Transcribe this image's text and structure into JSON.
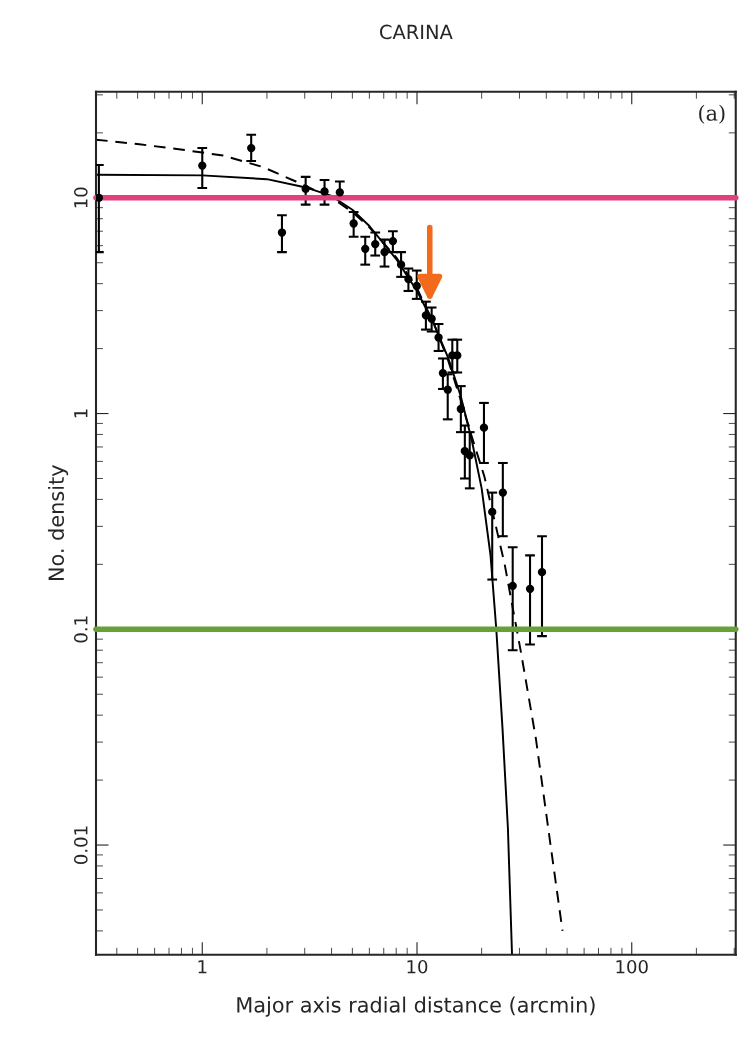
{
  "chart_data": {
    "type": "scatter",
    "title": "CARINA",
    "xlabel": "Major axis radial distance (arcmin)",
    "ylabel": "No. density",
    "log": "xy",
    "xlim": [
      0.32,
      305
    ],
    "ylim": [
      0.0031,
      31
    ],
    "xticks": [
      1,
      10,
      100
    ],
    "yticks": [
      0.01,
      0.1,
      1,
      10
    ],
    "grid": false,
    "legend": false,
    "annotations": [
      "(a)"
    ],
    "ref_lines": [
      {
        "axis": "y",
        "value": 10,
        "color": "#e23f7c"
      },
      {
        "axis": "y",
        "value": 0.1,
        "color": "#66a03a"
      }
    ],
    "series": [
      {
        "color": "#000000",
        "marker": "circle",
        "x": [
          0.33,
          1.0,
          1.69,
          2.35,
          3.03,
          3.71,
          4.37,
          5.07,
          5.74,
          6.39,
          7.06,
          7.72,
          8.43,
          9.12,
          9.97,
          11.0,
          11.7,
          12.6,
          13.2,
          13.9,
          14.6,
          15.4,
          16.0,
          16.7,
          17.6,
          20.5,
          22.4,
          25.1,
          27.9,
          33.6,
          38.2
        ],
        "values": [
          10,
          14.1,
          17.0,
          6.9,
          11.0,
          10.7,
          10.6,
          7.6,
          5.8,
          6.1,
          5.6,
          6.3,
          4.9,
          4.2,
          3.9,
          2.85,
          2.75,
          2.25,
          1.54,
          1.29,
          1.86,
          1.86,
          1.05,
          0.67,
          0.64,
          0.86,
          0.35,
          0.43,
          0.159,
          0.154,
          0.184
        ],
        "errors": [
          [
            5.6,
            14.2
          ],
          [
            11.1,
            17.0
          ],
          [
            14.8,
            19.6
          ],
          [
            5.6,
            8.3
          ],
          [
            9.3,
            12.5
          ],
          [
            9.3,
            12.1
          ],
          [
            10.0,
            11.9
          ],
          [
            6.6,
            8.6
          ],
          [
            4.9,
            6.6
          ],
          [
            5.4,
            6.9
          ],
          [
            4.8,
            6.4
          ],
          [
            5.6,
            7.0
          ],
          [
            4.3,
            5.6
          ],
          [
            3.7,
            4.7
          ],
          [
            3.4,
            4.6
          ],
          [
            2.45,
            3.3
          ],
          [
            2.4,
            3.1
          ],
          [
            1.95,
            2.6
          ],
          [
            1.3,
            1.8
          ],
          [
            0.94,
            1.52
          ],
          [
            1.55,
            2.2
          ],
          [
            1.55,
            2.2
          ],
          [
            0.82,
            1.34
          ],
          [
            0.5,
            0.88
          ],
          [
            0.45,
            0.82
          ],
          [
            0.59,
            1.12
          ],
          [
            0.17,
            0.43
          ],
          [
            0.27,
            0.59
          ],
          [
            0.08,
            0.24
          ],
          [
            0.085,
            0.22
          ],
          [
            0.093,
            0.27
          ]
        ]
      },
      {
        "type": "line",
        "color": "#000000",
        "line_style": "solid",
        "marker": "none",
        "x": [
          0.32,
          1,
          2,
          3,
          4,
          5,
          6,
          8,
          10,
          12,
          14,
          16,
          18,
          20,
          22,
          23.4,
          25,
          26.5,
          27.7
        ],
        "values": [
          12.8,
          12.7,
          12.2,
          11.2,
          10.2,
          8.8,
          7.4,
          5.2,
          3.7,
          2.6,
          1.8,
          1.2,
          0.75,
          0.45,
          0.22,
          0.1,
          0.035,
          0.012,
          0.0031
        ]
      },
      {
        "type": "line",
        "color": "#000000",
        "line_style": "dashed",
        "marker": "none",
        "x": [
          0.32,
          0.51,
          0.81,
          1.25,
          1.91,
          2.73,
          4,
          5,
          6,
          8,
          10,
          12,
          14,
          16,
          18,
          20.6,
          25.6,
          30.5,
          35.8,
          42.1,
          47.6
        ],
        "values": [
          18.6,
          17.7,
          16.7,
          15.7,
          13.9,
          11.9,
          10.0,
          8.6,
          7.3,
          5.3,
          3.8,
          2.6,
          1.75,
          1.15,
          0.78,
          0.51,
          0.2,
          0.078,
          0.031,
          0.0096,
          0.004
        ]
      }
    ]
  }
}
